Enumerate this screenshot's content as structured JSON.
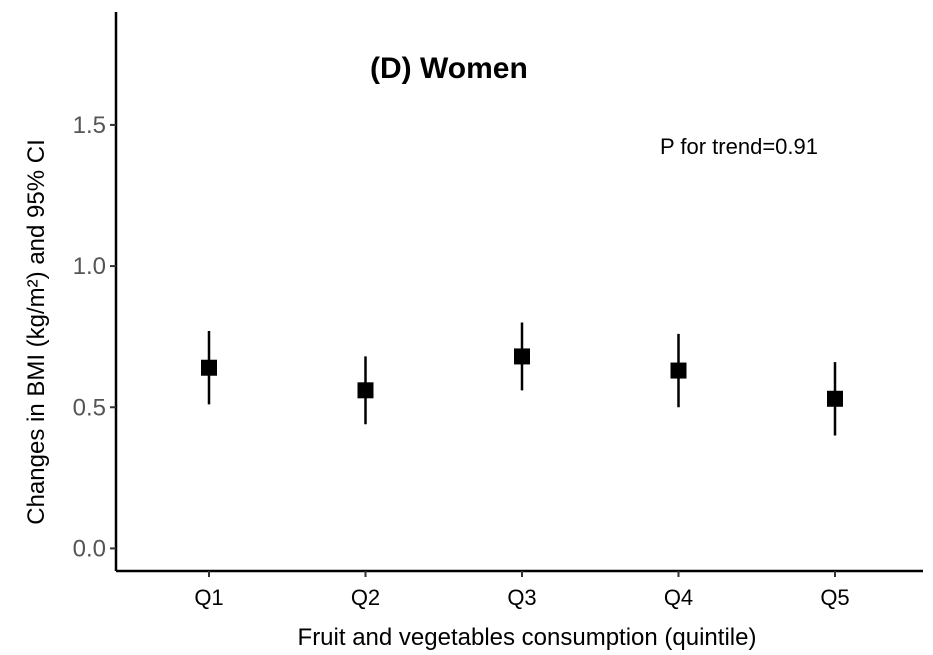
{
  "chart_data": {
    "type": "scatter",
    "title": "(D) Women",
    "annotation": "P for trend=0.91",
    "xlabel": "Fruit and vegetables consumption (quintile)",
    "ylabel": "Changes in BMI (kg/m²) and 95% CI",
    "categories": [
      "Q1",
      "Q2",
      "Q3",
      "Q4",
      "Q5"
    ],
    "values": [
      0.64,
      0.56,
      0.68,
      0.63,
      0.53
    ],
    "ci_lower": [
      0.51,
      0.44,
      0.56,
      0.5,
      0.4
    ],
    "ci_upper": [
      0.77,
      0.68,
      0.8,
      0.76,
      0.66
    ],
    "yticks": [
      0.0,
      0.5,
      1.0,
      1.5
    ],
    "ytick_labels": [
      "0.0",
      "0.5",
      "1.0",
      "1.5"
    ],
    "ylim": [
      -0.08,
      1.9
    ],
    "grid": false,
    "legend": false,
    "marker": "square",
    "color": "#000000"
  }
}
